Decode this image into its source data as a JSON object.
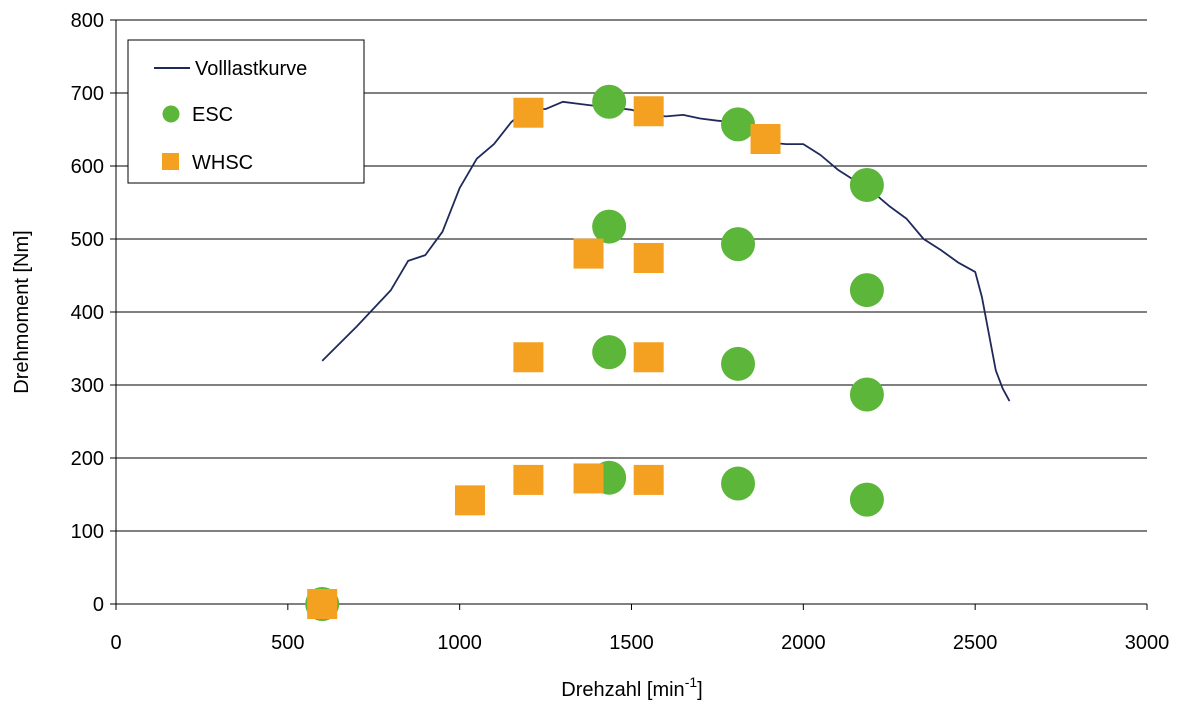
{
  "chart_data": {
    "type": "scatter",
    "xlabel": "Drehzahl [min",
    "xlabel_sup": "-1",
    "xlabel_suffix": "]",
    "ylabel": "Drehmoment [Nm]",
    "xlim": [
      0,
      3000
    ],
    "ylim": [
      0,
      800
    ],
    "x_ticks": [
      "0",
      "500",
      "1000",
      "1500",
      "2000",
      "2500",
      "3000"
    ],
    "y_ticks": [
      "0",
      "100",
      "200",
      "300",
      "400",
      "500",
      "600",
      "700",
      "800"
    ],
    "grid": "horizontal",
    "legend_placement": "top-left",
    "colors": {
      "line": "#1f2a5a",
      "esc": "#5cb63a",
      "whsc": "#f4a021",
      "grid": "#000000"
    },
    "series": [
      {
        "name": "Volllastkurve",
        "kind": "line",
        "x": [
          600,
          700,
          800,
          850,
          900,
          950,
          1000,
          1050,
          1100,
          1150,
          1200,
          1250,
          1300,
          1350,
          1400,
          1450,
          1500,
          1550,
          1600,
          1650,
          1700,
          1750,
          1800,
          1850,
          1900,
          1950,
          2000,
          2050,
          2100,
          2150,
          2200,
          2250,
          2300,
          2350,
          2400,
          2450,
          2500,
          2520,
          2540,
          2560,
          2580,
          2600
        ],
        "y": [
          333,
          380,
          430,
          470,
          478,
          510,
          570,
          610,
          630,
          660,
          680,
          678,
          688,
          685,
          682,
          680,
          677,
          670,
          668,
          670,
          665,
          662,
          660,
          650,
          632,
          630,
          630,
          615,
          595,
          580,
          565,
          545,
          528,
          500,
          485,
          468,
          455,
          420,
          370,
          320,
          295,
          278
        ]
      },
      {
        "name": "ESC",
        "kind": "marker-circle",
        "x": [
          600,
          1435,
          1435,
          1435,
          1435,
          1810,
          1810,
          1810,
          1810,
          2185,
          2185,
          2185,
          2185
        ],
        "y": [
          0,
          688,
          517,
          345,
          173,
          657,
          493,
          329,
          165,
          574,
          430,
          287,
          143
        ]
      },
      {
        "name": "WHSC",
        "kind": "marker-square",
        "x": [
          600,
          1030,
          1200,
          1200,
          1200,
          1375,
          1375,
          1550,
          1550,
          1550,
          1550,
          1890
        ],
        "y": [
          0,
          142,
          170,
          338,
          673,
          172,
          480,
          170,
          338,
          474,
          675,
          637
        ]
      }
    ]
  }
}
